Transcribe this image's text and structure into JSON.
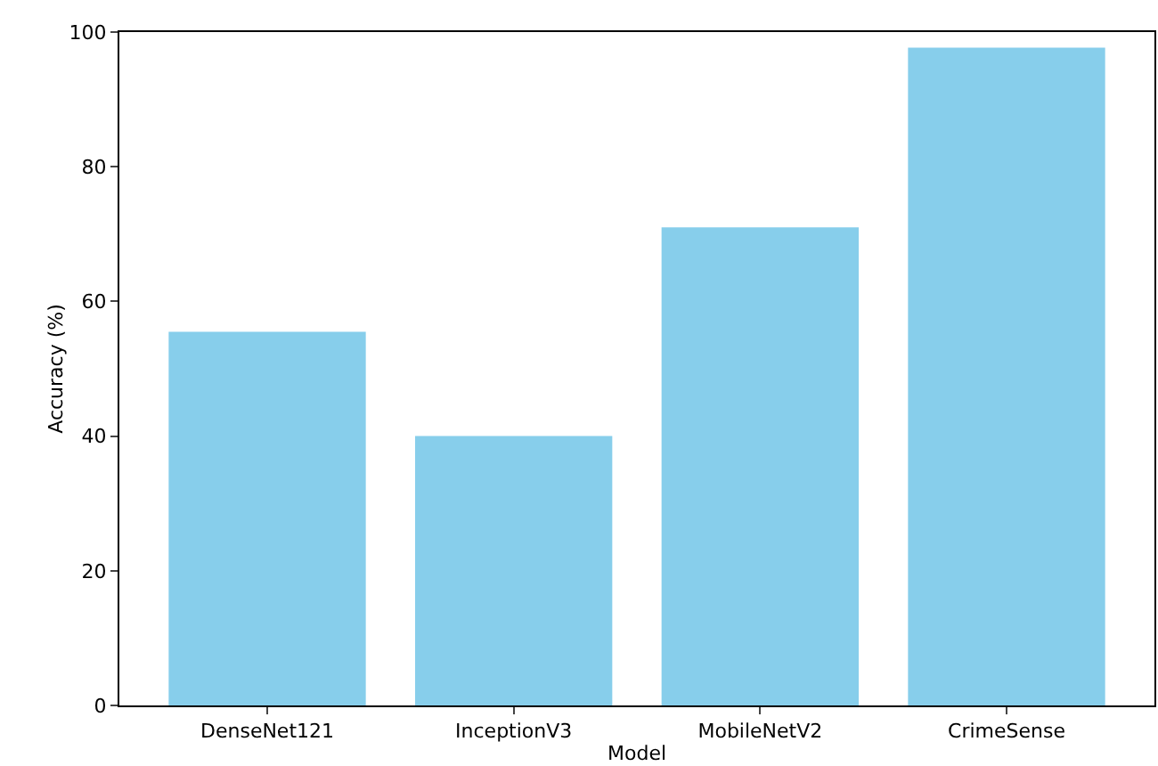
{
  "chart_data": {
    "type": "bar",
    "xlabel": "Model",
    "ylabel": "Accuracy (%)",
    "categories": [
      "DenseNet121",
      "InceptionV3",
      "MobileNetV2",
      "CrimeSense"
    ],
    "values": [
      55.5,
      40,
      71,
      97.7
    ],
    "color": "#87ceeb",
    "ylim": [
      0,
      100
    ],
    "yticks": [
      0,
      20,
      40,
      60,
      80,
      100
    ],
    "grid": false
  }
}
